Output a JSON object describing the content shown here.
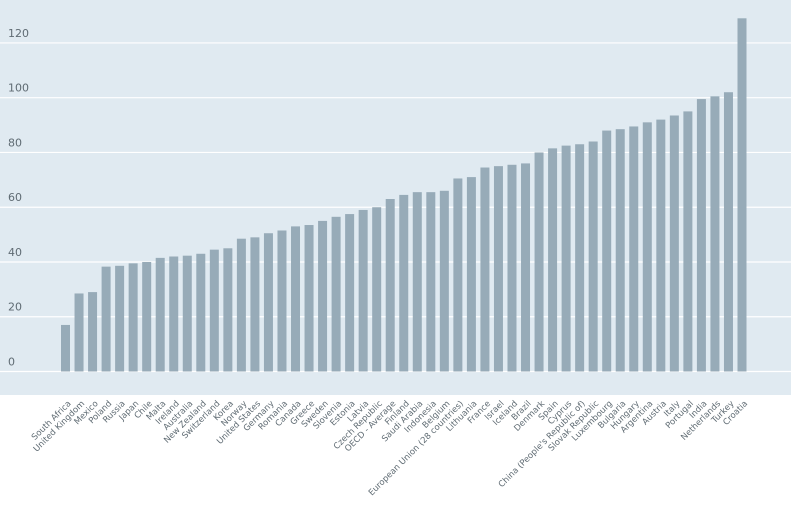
{
  "chart_data": {
    "type": "bar",
    "title": "",
    "xlabel": "",
    "ylabel": "",
    "ylim": [
      -10,
      130
    ],
    "yticks": [
      0,
      20,
      40,
      60,
      80,
      100,
      120
    ],
    "grid": true,
    "legend": "none",
    "colors": {
      "bar": "#97abb8",
      "plot_bg": "#e0eaf1",
      "grid": "#ffffff",
      "tick_text": "#5f6b73"
    },
    "categories": [
      "South Africa",
      "United Kingdom",
      "Mexico",
      "Poland",
      "Russia",
      "Japan",
      "Chile",
      "Malta",
      "Ireland",
      "Australia",
      "New Zealand",
      "Switzerland",
      "Korea",
      "Norway",
      "United States",
      "Germany",
      "Romania",
      "Canada",
      "Greece",
      "Sweden",
      "Slovenia",
      "Estonia",
      "Latvia",
      "Czech Republic",
      "OECD - Average",
      "Finland",
      "Saudi Arabia",
      "Indonesia",
      "Belgium",
      "European Union (28 countries)",
      "Lithuania",
      "France",
      "Israel",
      "Iceland",
      "Brazil",
      "Denmark",
      "Spain",
      "Cyprus",
      "China (People's Republic of)",
      "Slovak Republic",
      "Luxembourg",
      "Bulgaria",
      "Hungary",
      "Argentina",
      "Austria",
      "Italy",
      "Portugal",
      "India",
      "Netherlands",
      "Turkey",
      "Croatia"
    ],
    "values": [
      17,
      28.5,
      29,
      38.3,
      38.6,
      39.5,
      40,
      41.5,
      42,
      42.3,
      43,
      44.5,
      45,
      48.5,
      49,
      50.5,
      51.5,
      53,
      53.5,
      55,
      56.5,
      57.5,
      59,
      60,
      63,
      64.5,
      65.5,
      65.5,
      66,
      70.5,
      71,
      74.5,
      75,
      75.5,
      76,
      80,
      81.5,
      82.5,
      83,
      84,
      88,
      88.5,
      89.5,
      91,
      92,
      93.5,
      95,
      99.5,
      100.5,
      102,
      129
    ]
  }
}
